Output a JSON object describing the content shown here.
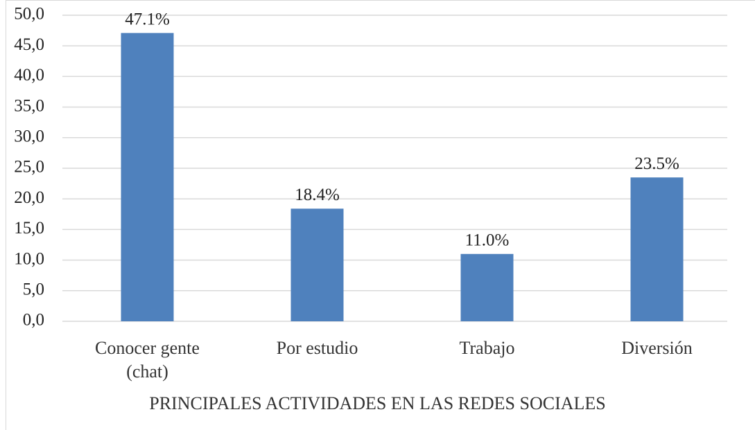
{
  "chart_data": {
    "type": "bar",
    "x_label": "PRINCIPALES ACTIVIDADES EN LAS REDES SOCIALES",
    "categories": [
      "Conocer gente (chat)",
      "Por estudio",
      "Trabajo",
      "Diversión"
    ],
    "values": [
      47.1,
      18.4,
      11.0,
      23.5
    ],
    "value_labels": [
      "47.1%",
      "18.4%",
      "11.0%",
      "23.5%"
    ],
    "color": "#4f81bd",
    "ylim": [
      0,
      50
    ],
    "yticks": [
      {
        "value": 0,
        "label": "0,0"
      },
      {
        "value": 5,
        "label": "5,0"
      },
      {
        "value": 10,
        "label": "10,0"
      },
      {
        "value": 15,
        "label": "15,0"
      },
      {
        "value": 20,
        "label": "20,0"
      },
      {
        "value": 25,
        "label": "25,0"
      },
      {
        "value": 30,
        "label": "30,0"
      },
      {
        "value": 35,
        "label": "35,0"
      },
      {
        "value": 40,
        "label": "40,0"
      },
      {
        "value": 45,
        "label": "45,0"
      },
      {
        "value": 50,
        "label": "50,0"
      }
    ],
    "grid": true
  }
}
